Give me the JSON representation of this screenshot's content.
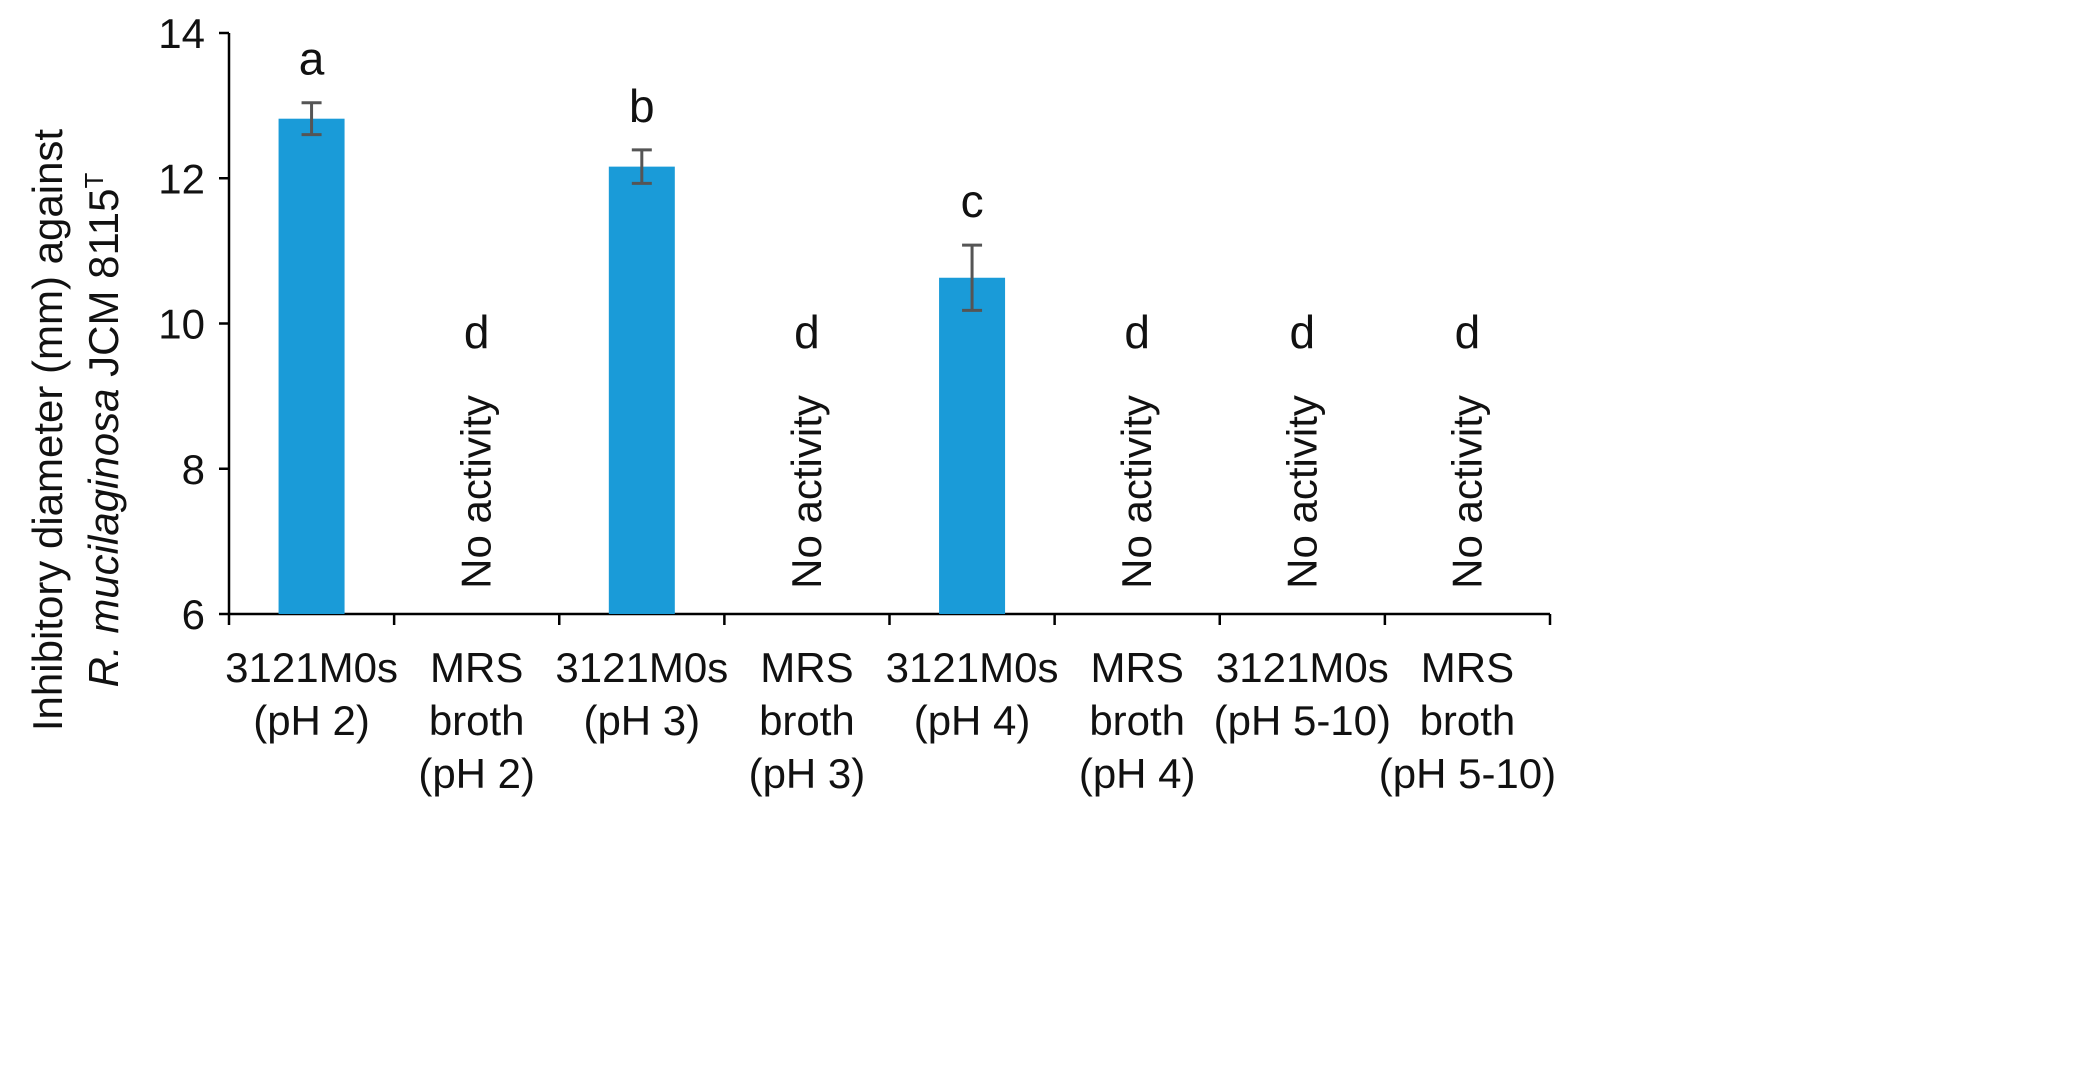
{
  "chart_data": {
    "type": "bar",
    "ylabel": {
      "line1": "Inhibitory diameter (mm) against",
      "line2_italic": "R. mucilaginosa",
      "line2_rest": " JCM 8115",
      "line2_sup": "T"
    },
    "ylim": [
      6,
      14
    ],
    "yticks": [
      "6",
      "8",
      "10",
      "12",
      "14"
    ],
    "grid": false,
    "bar_color": "#1a9bd8",
    "errorbar_color": "#555555",
    "no_activity_text": "No activity",
    "categories": [
      {
        "lines": [
          "3121M0s",
          "(pH 2)"
        ],
        "value": 12.82,
        "error": 0.22,
        "letter": "a",
        "no_activity": false
      },
      {
        "lines": [
          "MRS",
          "broth",
          "(pH 2)"
        ],
        "value": null,
        "error": null,
        "letter": "d",
        "no_activity": true
      },
      {
        "lines": [
          "3121M0s",
          "(pH 3)"
        ],
        "value": 12.16,
        "error": 0.23,
        "letter": "b",
        "no_activity": false
      },
      {
        "lines": [
          "MRS",
          "broth",
          "(pH 3)"
        ],
        "value": null,
        "error": null,
        "letter": "d",
        "no_activity": true
      },
      {
        "lines": [
          "3121M0s",
          "(pH 4)"
        ],
        "value": 10.63,
        "error": 0.45,
        "letter": "c",
        "no_activity": false
      },
      {
        "lines": [
          "MRS",
          "broth",
          "(pH 4)"
        ],
        "value": null,
        "error": null,
        "letter": "d",
        "no_activity": true
      },
      {
        "lines": [
          "3121M0s",
          "(pH 5-10)"
        ],
        "value": null,
        "error": null,
        "letter": "d",
        "no_activity": true
      },
      {
        "lines": [
          "MRS",
          "broth",
          "(pH 5-10)"
        ],
        "value": null,
        "error": null,
        "letter": "d",
        "no_activity": true
      }
    ]
  }
}
